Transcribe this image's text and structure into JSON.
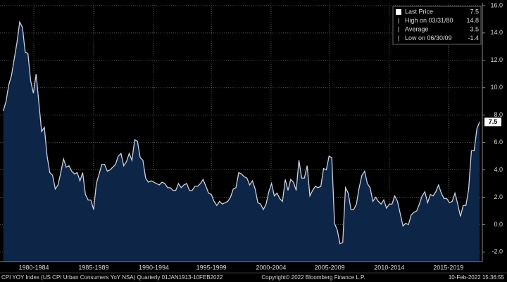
{
  "chart_data": {
    "type": "area",
    "series": [
      {
        "name": "CPI YOY Index",
        "color": "#c9d2de",
        "fill": "#0d2547",
        "x": [
          1978.75,
          1979,
          1979.25,
          1979.5,
          1979.75,
          1980,
          1980.25,
          1980.5,
          1980.75,
          1981,
          1981.25,
          1981.5,
          1981.75,
          1982,
          1982.25,
          1982.5,
          1982.75,
          1983,
          1983.25,
          1983.5,
          1983.75,
          1984,
          1984.25,
          1984.5,
          1984.75,
          1985,
          1985.25,
          1985.5,
          1985.75,
          1986,
          1986.25,
          1986.5,
          1986.75,
          1987,
          1987.25,
          1987.5,
          1987.75,
          1988,
          1988.25,
          1988.5,
          1988.75,
          1989,
          1989.25,
          1989.5,
          1989.75,
          1990,
          1990.25,
          1990.5,
          1990.75,
          1991,
          1991.25,
          1991.5,
          1991.75,
          1992,
          1992.25,
          1992.5,
          1992.75,
          1993,
          1993.25,
          1993.5,
          1993.75,
          1994,
          1994.25,
          1994.5,
          1994.75,
          1995,
          1995.25,
          1995.5,
          1995.75,
          1996,
          1996.25,
          1996.5,
          1996.75,
          1997,
          1997.25,
          1997.5,
          1997.75,
          1998,
          1998.25,
          1998.5,
          1998.75,
          1999,
          1999.25,
          1999.5,
          1999.75,
          2000,
          2000.25,
          2000.5,
          2000.75,
          2001,
          2001.25,
          2001.5,
          2001.75,
          2002,
          2002.25,
          2002.5,
          2002.75,
          2003,
          2003.25,
          2003.5,
          2003.75,
          2004,
          2004.25,
          2004.5,
          2004.75,
          2005,
          2005.25,
          2005.5,
          2005.75,
          2006,
          2006.25,
          2006.5,
          2006.75,
          2007,
          2007.25,
          2007.5,
          2007.75,
          2008,
          2008.25,
          2008.5,
          2008.75,
          2009,
          2009.25,
          2009.5,
          2009.75,
          2010,
          2010.25,
          2010.5,
          2010.75,
          2011,
          2011.25,
          2011.5,
          2011.75,
          2012,
          2012.25,
          2012.5,
          2012.75,
          2013,
          2013.25,
          2013.5,
          2013.75,
          2014,
          2014.25,
          2014.5,
          2014.75,
          2015,
          2015.25,
          2015.5,
          2015.75,
          2016,
          2016.25,
          2016.5,
          2016.75,
          2017,
          2017.25,
          2017.5,
          2017.75,
          2018,
          2018.25,
          2018.5,
          2018.75,
          2019,
          2019.25,
          2019.5,
          2019.75,
          2020,
          2020.25,
          2020.5,
          2020.75,
          2021,
          2021.25,
          2021.5,
          2021.75,
          2022,
          2022.25
        ],
        "values": [
          8.3,
          9.0,
          10.2,
          10.9,
          12.1,
          13.3,
          14.8,
          14.4,
          12.6,
          12.5,
          10.5,
          9.6,
          11.0,
          8.9,
          6.8,
          7.1,
          5.0,
          3.8,
          3.6,
          2.6,
          2.9,
          3.8,
          4.8,
          4.2,
          4.3,
          3.9,
          3.7,
          3.8,
          3.2,
          3.8,
          2.2,
          1.8,
          1.8,
          1.1,
          3.0,
          3.7,
          4.4,
          4.4,
          3.9,
          4.0,
          4.2,
          4.4,
          5.0,
          5.2,
          4.3,
          4.6,
          5.2,
          4.7,
          6.2,
          6.1,
          4.9,
          4.7,
          3.4,
          3.1,
          3.2,
          3.1,
          3.0,
          2.9,
          3.1,
          3.0,
          2.7,
          2.7,
          2.5,
          2.5,
          3.0,
          2.7,
          2.9,
          3.0,
          2.5,
          2.5,
          2.8,
          2.8,
          3.0,
          3.3,
          2.8,
          2.3,
          2.2,
          1.7,
          1.4,
          1.7,
          1.5,
          1.6,
          1.7,
          2.0,
          2.6,
          2.7,
          3.8,
          3.7,
          3.5,
          3.4,
          2.9,
          3.2,
          2.6,
          1.6,
          1.5,
          1.1,
          1.5,
          2.4,
          3.0,
          2.1,
          2.3,
          1.9,
          1.7,
          3.3,
          2.5,
          3.3,
          3.1,
          2.5,
          4.7,
          3.4,
          3.4,
          4.3,
          2.1,
          2.5,
          2.8,
          2.7,
          2.8,
          4.1,
          4.0,
          5.0,
          4.9,
          0.1,
          -0.4,
          -1.4,
          -1.3,
          2.7,
          2.3,
          1.1,
          1.1,
          1.5,
          2.7,
          3.6,
          3.9,
          3.0,
          2.7,
          1.7,
          2.0,
          1.7,
          1.5,
          1.8,
          1.2,
          1.5,
          1.5,
          2.1,
          1.7,
          0.8,
          -0.1,
          0.1,
          0.0,
          0.7,
          0.9,
          1.0,
          1.5,
          2.1,
          2.4,
          1.6,
          2.2,
          2.1,
          2.4,
          2.9,
          2.3,
          1.9,
          1.9,
          1.6,
          1.7,
          2.3,
          1.5,
          0.6,
          1.4,
          1.4,
          2.6,
          5.4,
          5.4,
          7.0,
          7.5
        ]
      }
    ],
    "xlim": [
      1978.45,
      2022.5
    ],
    "xticks": [
      {
        "value": 1981.54,
        "label": "1980-1984"
      },
      {
        "value": 1987.0,
        "label": "1985-1989"
      },
      {
        "value": 1992.5,
        "label": "1990-1994"
      },
      {
        "value": 1997.75,
        "label": "1995-1999"
      },
      {
        "value": 2003.2,
        "label": "2000-2004"
      },
      {
        "value": 2008.55,
        "label": "2005-2009"
      },
      {
        "value": 2014.0,
        "label": "2010-2014"
      },
      {
        "value": 2019.4,
        "label": "2015-2019"
      }
    ],
    "ylim": [
      -2.7,
      16.2
    ],
    "yticks": [
      {
        "value": -2,
        "label": "-2.0"
      },
      {
        "value": 0,
        "label": "0.0"
      },
      {
        "value": 2,
        "label": "2.0"
      },
      {
        "value": 4,
        "label": "4.0"
      },
      {
        "value": 6,
        "label": "6.0"
      },
      {
        "value": 8,
        "label": "8.0"
      },
      {
        "value": 10,
        "label": "10.0"
      },
      {
        "value": 12,
        "label": "12.0"
      },
      {
        "value": 14,
        "label": "14.0"
      },
      {
        "value": 16,
        "label": "16.0"
      }
    ],
    "grid": true,
    "legend": [
      {
        "label": "Last Price",
        "value": 7.5
      },
      {
        "label": "High on 03/31/80",
        "value": 14.8
      },
      {
        "label": "Average",
        "value": 3.5
      },
      {
        "label": "Low on 06/30/09",
        "value": -1.4
      }
    ],
    "footer": [
      "CPI YOY Index (US CPI Urban Consumers YoY NSA)  Quarterly 01JAN1913-10FEB2022",
      "Copyright© 2022 Bloomberg Finance L.P.",
      "10-Feb-2022 15:36:55"
    ]
  }
}
